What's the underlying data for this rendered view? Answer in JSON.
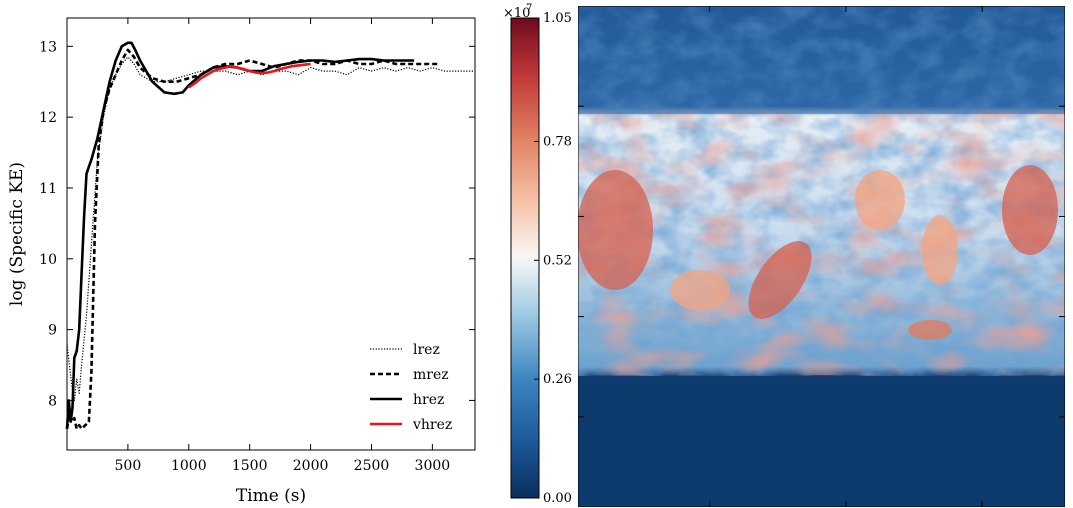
{
  "chart_data": [
    {
      "type": "line",
      "xlabel": "Time (s)",
      "ylabel": "log (Specific KE)",
      "xlim": [
        0,
        3350
      ],
      "ylim": [
        7.3,
        13.4
      ],
      "xticks": [
        500,
        1000,
        1500,
        2000,
        2500,
        3000
      ],
      "yticks": [
        8,
        9,
        10,
        11,
        12,
        13
      ],
      "legend_position": "lower-right",
      "series": [
        {
          "name": "lrez",
          "color": "#000000",
          "style": "dotted",
          "x": [
            0,
            20,
            40,
            60,
            80,
            100,
            120,
            160,
            200,
            250,
            300,
            350,
            400,
            450,
            500,
            550,
            600,
            700,
            800,
            900,
            1000,
            1100,
            1200,
            1300,
            1400,
            1500,
            1600,
            1700,
            1800,
            1900,
            2000,
            2100,
            2200,
            2300,
            2400,
            2500,
            2600,
            2700,
            2800,
            2900,
            3000,
            3100,
            3200,
            3350
          ],
          "y": [
            8.8,
            8.5,
            8.2,
            8.0,
            8.3,
            8.1,
            8.5,
            9.2,
            10.2,
            11.4,
            12.0,
            12.4,
            12.6,
            12.75,
            12.85,
            12.75,
            12.6,
            12.5,
            12.5,
            12.55,
            12.6,
            12.65,
            12.65,
            12.65,
            12.6,
            12.65,
            12.6,
            12.65,
            12.65,
            12.6,
            12.7,
            12.65,
            12.65,
            12.6,
            12.7,
            12.65,
            12.7,
            12.65,
            12.7,
            12.65,
            12.7,
            12.65,
            12.65,
            12.65
          ]
        },
        {
          "name": "mrez",
          "color": "#000000",
          "style": "dashed",
          "x": [
            0,
            20,
            40,
            60,
            80,
            100,
            120,
            150,
            180,
            200,
            230,
            260,
            300,
            350,
            400,
            450,
            500,
            550,
            600,
            700,
            800,
            900,
            1000,
            1100,
            1200,
            1300,
            1400,
            1500,
            1600,
            1700,
            1800,
            1900,
            2000,
            2100,
            2200,
            2300,
            2400,
            2500,
            2600,
            2700,
            2800,
            2900,
            3000,
            3050
          ],
          "y": [
            7.6,
            7.8,
            7.7,
            7.75,
            7.6,
            7.65,
            7.6,
            7.65,
            7.7,
            8.4,
            10.5,
            11.6,
            12.1,
            12.4,
            12.6,
            12.8,
            12.95,
            12.85,
            12.7,
            12.55,
            12.5,
            12.5,
            12.55,
            12.6,
            12.7,
            12.75,
            12.75,
            12.8,
            12.75,
            12.7,
            12.75,
            12.8,
            12.8,
            12.75,
            12.75,
            12.8,
            12.75,
            12.75,
            12.8,
            12.75,
            12.75,
            12.75,
            12.75,
            12.75
          ]
        },
        {
          "name": "hrez",
          "color": "#000000",
          "style": "solid",
          "x": [
            0,
            15,
            30,
            45,
            60,
            80,
            100,
            120,
            140,
            160,
            180,
            200,
            250,
            300,
            350,
            400,
            450,
            500,
            530,
            560,
            600,
            700,
            800,
            880,
            950,
            1000,
            1100,
            1200,
            1300,
            1400,
            1500,
            1600,
            1700,
            1800,
            1900,
            2000,
            2100,
            2200,
            2300,
            2400,
            2500,
            2600,
            2700,
            2850
          ],
          "y": [
            7.6,
            8.0,
            7.7,
            7.9,
            8.6,
            8.7,
            9.0,
            9.8,
            10.6,
            11.2,
            11.3,
            11.4,
            11.7,
            12.1,
            12.5,
            12.8,
            13.0,
            13.05,
            13.05,
            12.95,
            12.8,
            12.5,
            12.35,
            12.33,
            12.35,
            12.45,
            12.6,
            12.7,
            12.72,
            12.7,
            12.65,
            12.65,
            12.72,
            12.75,
            12.78,
            12.8,
            12.8,
            12.78,
            12.8,
            12.82,
            12.82,
            12.8,
            12.8,
            12.8
          ]
        },
        {
          "name": "vhrez",
          "color": "#e8161b",
          "style": "solid",
          "x": [
            1000,
            1050,
            1100,
            1150,
            1200,
            1250,
            1300,
            1350,
            1400,
            1450,
            1500,
            1550,
            1600,
            1650,
            1700,
            1750,
            1800,
            1850,
            1900,
            1950,
            2000
          ],
          "y": [
            12.42,
            12.48,
            12.55,
            12.6,
            12.65,
            12.68,
            12.7,
            12.72,
            12.7,
            12.68,
            12.65,
            12.63,
            12.62,
            12.63,
            12.65,
            12.68,
            12.7,
            12.72,
            12.73,
            12.74,
            12.75
          ]
        }
      ]
    },
    {
      "type": "heatmap",
      "colormap": "RdBu_r",
      "colorbar_multiplier": "×10",
      "colorbar_exponent": "7",
      "colorbar_range": [
        0.0,
        1.05
      ],
      "colorbar_ticks": [
        "0.00",
        "0.26",
        "0.52",
        "0.78",
        "1.05"
      ],
      "colorbar_tick_values": [
        0.0,
        0.26,
        0.52,
        0.78,
        1.05
      ],
      "colors": {
        "low": "#0b3d72",
        "mid": "#f7f7f7",
        "high": "#7f0a1d"
      }
    }
  ]
}
